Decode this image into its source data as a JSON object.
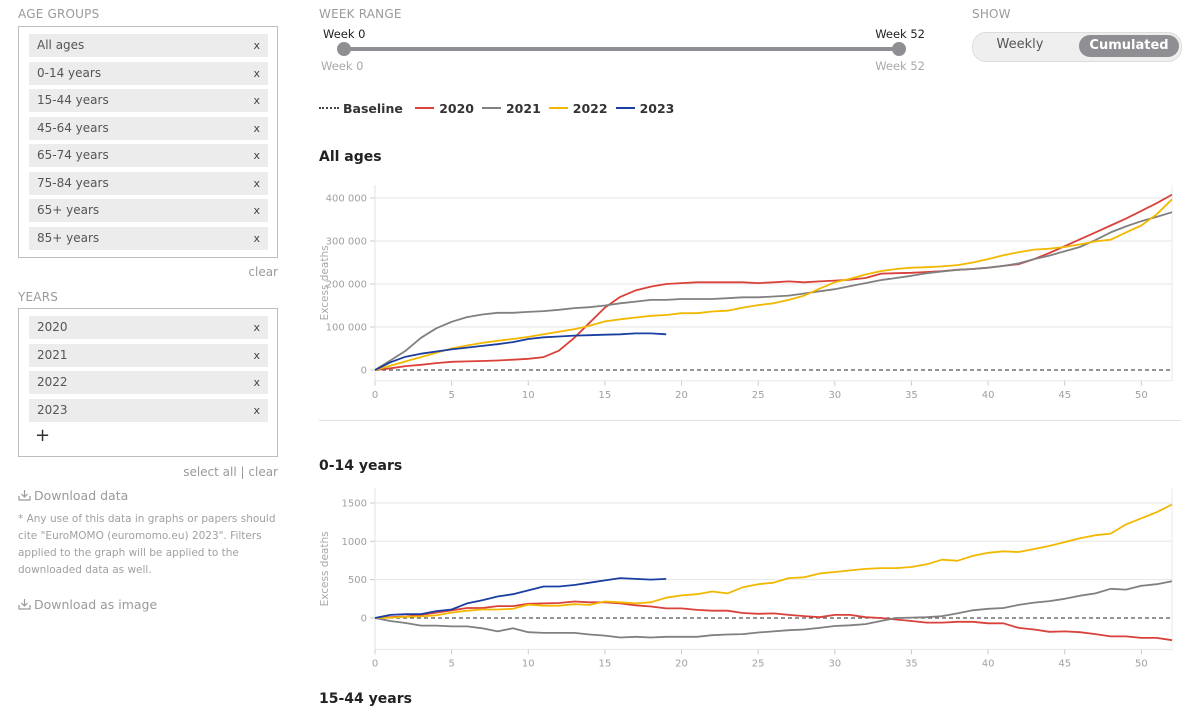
{
  "sidebar": {
    "age_groups_label": "AGE GROUPS",
    "age_groups": [
      "All ages",
      "0-14 years",
      "15-44 years",
      "45-64 years",
      "65-74 years",
      "75-84 years",
      "65+ years",
      "85+ years"
    ],
    "remove_glyph": "x",
    "age_clear": "clear",
    "years_label": "YEARS",
    "years": [
      "2020",
      "2021",
      "2022",
      "2023"
    ],
    "add_glyph": "+",
    "select_all": "select all",
    "separator": "|",
    "years_clear": "clear",
    "download_data": "Download data",
    "note": "* Any use of this data in graphs or papers should cite \"EuroMOMO (euromomo.eu) 2023\". Filters applied to the graph will be applied to the downloaded data as well.",
    "download_image": "Download as image",
    "download_icon": "download-icon"
  },
  "week_range": {
    "label": "WEEK RANGE",
    "min_top": "Week 0",
    "max_top": "Week 52",
    "min_bottom": "Week 0",
    "max_bottom": "Week 52",
    "value_min": 0,
    "value_max": 52,
    "range_min": 0,
    "range_max": 52
  },
  "show": {
    "label": "SHOW",
    "options": [
      "Weekly",
      "Cumulated"
    ],
    "selected": "Cumulated"
  },
  "legend": {
    "baseline": "Baseline",
    "items": [
      {
        "label": "2020",
        "color": "#d9413a"
      },
      {
        "label": "2021",
        "color": "#808080"
      },
      {
        "label": "2022",
        "color": "#f2b800"
      },
      {
        "label": "2023",
        "color": "#1a3fa0"
      }
    ]
  },
  "chart_data": [
    {
      "type": "line",
      "title": "All ages",
      "xlabel": "",
      "ylabel": "Excess deaths",
      "xlim": [
        0,
        52
      ],
      "ylim": [
        -25000,
        430000
      ],
      "yticks": [
        0,
        100000,
        200000,
        300000,
        400000
      ],
      "ytick_labels": [
        "0",
        "100 000",
        "200 000",
        "300 000",
        "400 000"
      ],
      "xticks": [
        0,
        5,
        10,
        15,
        20,
        25,
        30,
        35,
        40,
        45,
        50
      ],
      "xtick_labels": [
        "0",
        "5",
        "10",
        "15",
        "20",
        "25",
        "30",
        "35",
        "40",
        "45",
        "50"
      ],
      "grid": true,
      "baseline": 0,
      "series": [
        {
          "name": "2020",
          "color": "#d9413a",
          "x": [
            0,
            1,
            2,
            3,
            4,
            5,
            6,
            7,
            8,
            9,
            10,
            11,
            12,
            13,
            14,
            15,
            16,
            17,
            18,
            19,
            20,
            21,
            22,
            23,
            24,
            25,
            26,
            27,
            28,
            29,
            30,
            31,
            32,
            33,
            34,
            35,
            36,
            37,
            38,
            39,
            40,
            41,
            42,
            43,
            44,
            45,
            46,
            47,
            48,
            49,
            50,
            51,
            52
          ],
          "y": [
            0,
            4000,
            9000,
            12000,
            16000,
            19000,
            20000,
            21000,
            22000,
            24000,
            26000,
            30000,
            45000,
            75000,
            110000,
            145000,
            170000,
            185000,
            194000,
            200000,
            202000,
            204000,
            204000,
            204000,
            204000,
            202000,
            204000,
            206000,
            204000,
            206000,
            208000,
            210000,
            214000,
            224000,
            225000,
            226000,
            228000,
            230000,
            233000,
            235000,
            238000,
            242000,
            246000,
            258000,
            272000,
            288000,
            304000,
            320000,
            336000,
            352000,
            370000,
            388000,
            408000
          ]
        },
        {
          "name": "2021",
          "color": "#808080",
          "x": [
            0,
            1,
            2,
            3,
            4,
            5,
            6,
            7,
            8,
            9,
            10,
            11,
            12,
            13,
            14,
            15,
            16,
            17,
            18,
            19,
            20,
            21,
            22,
            23,
            24,
            25,
            26,
            27,
            28,
            29,
            30,
            31,
            32,
            33,
            34,
            35,
            36,
            37,
            38,
            39,
            40,
            41,
            42,
            43,
            44,
            45,
            46,
            47,
            48,
            49,
            50,
            51,
            52
          ],
          "y": [
            0,
            22000,
            45000,
            75000,
            97000,
            112000,
            123000,
            129000,
            133000,
            133000,
            135000,
            137000,
            140000,
            144000,
            146000,
            150000,
            155000,
            159000,
            163000,
            163000,
            165000,
            165000,
            165000,
            167000,
            169000,
            169000,
            171000,
            173000,
            178000,
            183000,
            188000,
            195000,
            202000,
            209000,
            214000,
            219000,
            225000,
            229000,
            233000,
            235000,
            238000,
            242000,
            248000,
            258000,
            266000,
            276000,
            286000,
            302000,
            320000,
            334000,
            346000,
            356000,
            367000
          ]
        },
        {
          "name": "2022",
          "color": "#f2b800",
          "x": [
            0,
            1,
            2,
            3,
            4,
            5,
            6,
            7,
            8,
            9,
            10,
            11,
            12,
            13,
            14,
            15,
            16,
            17,
            18,
            19,
            20,
            21,
            22,
            23,
            24,
            25,
            26,
            27,
            28,
            29,
            30,
            31,
            32,
            33,
            34,
            35,
            36,
            37,
            38,
            39,
            40,
            41,
            42,
            43,
            44,
            45,
            46,
            47,
            48,
            49,
            50,
            51,
            52
          ],
          "y": [
            0,
            10000,
            20000,
            30000,
            40000,
            50000,
            57000,
            63000,
            68000,
            72000,
            77000,
            83000,
            89000,
            95000,
            103000,
            113000,
            118000,
            122000,
            126000,
            128000,
            132000,
            132000,
            136000,
            138000,
            145000,
            151000,
            155000,
            163000,
            173000,
            189000,
            204000,
            212000,
            222000,
            230000,
            235000,
            238000,
            239000,
            241000,
            244000,
            250000,
            258000,
            267000,
            274000,
            280000,
            282000,
            286000,
            292000,
            299000,
            303000,
            320000,
            336000,
            362000,
            397000
          ]
        },
        {
          "name": "2023",
          "color": "#1a3fa0",
          "x": [
            0,
            1,
            2,
            3,
            4,
            5,
            6,
            7,
            8,
            9,
            10,
            11,
            12,
            13,
            14,
            15,
            16,
            17,
            18,
            19
          ],
          "y": [
            0,
            18000,
            31000,
            38000,
            43000,
            48000,
            52000,
            56000,
            60000,
            65000,
            72000,
            76000,
            78000,
            80000,
            81000,
            82000,
            83000,
            85000,
            85000,
            83000
          ]
        }
      ]
    },
    {
      "type": "line",
      "title": "0-14 years",
      "xlabel": "",
      "ylabel": "Excess deaths",
      "xlim": [
        0,
        52
      ],
      "ylim": [
        -410,
        1690
      ],
      "yticks": [
        0,
        500,
        1000,
        1500
      ],
      "ytick_labels": [
        "0",
        "500",
        "1000",
        "1500"
      ],
      "xticks": [
        0,
        5,
        10,
        15,
        20,
        25,
        30,
        35,
        40,
        45,
        50
      ],
      "xtick_labels": [
        "0",
        "5",
        "10",
        "15",
        "20",
        "25",
        "30",
        "35",
        "40",
        "45",
        "50"
      ],
      "grid": true,
      "baseline": 0,
      "series": [
        {
          "name": "2020",
          "color": "#d9413a",
          "x": [
            0,
            1,
            2,
            3,
            4,
            5,
            6,
            7,
            8,
            9,
            10,
            11,
            12,
            13,
            14,
            15,
            16,
            17,
            18,
            19,
            20,
            21,
            22,
            23,
            24,
            25,
            26,
            27,
            28,
            29,
            30,
            31,
            32,
            33,
            34,
            35,
            36,
            37,
            38,
            39,
            40,
            41,
            42,
            43,
            44,
            45,
            46,
            47,
            48,
            49,
            50,
            51,
            52
          ],
          "y": [
            0,
            10,
            20,
            40,
            70,
            100,
            130,
            130,
            155,
            155,
            185,
            190,
            195,
            215,
            205,
            205,
            190,
            165,
            150,
            125,
            125,
            105,
            95,
            95,
            65,
            55,
            60,
            40,
            25,
            10,
            40,
            40,
            10,
            0,
            -20,
            -40,
            -60,
            -60,
            -50,
            -50,
            -70,
            -70,
            -130,
            -150,
            -180,
            -175,
            -185,
            -210,
            -240,
            -240,
            -260,
            -260,
            -290
          ]
        },
        {
          "name": "2021",
          "color": "#808080",
          "x": [
            0,
            1,
            2,
            3,
            4,
            5,
            6,
            7,
            8,
            9,
            10,
            11,
            12,
            13,
            14,
            15,
            16,
            17,
            18,
            19,
            20,
            21,
            22,
            23,
            24,
            25,
            26,
            27,
            28,
            29,
            30,
            31,
            32,
            33,
            34,
            35,
            36,
            37,
            38,
            39,
            40,
            41,
            42,
            43,
            44,
            45,
            46,
            47,
            48,
            49,
            50,
            51,
            52
          ],
          "y": [
            0,
            -40,
            -65,
            -100,
            -100,
            -110,
            -110,
            -135,
            -175,
            -135,
            -185,
            -195,
            -195,
            -195,
            -215,
            -230,
            -255,
            -245,
            -255,
            -245,
            -245,
            -245,
            -225,
            -215,
            -210,
            -190,
            -175,
            -160,
            -150,
            -130,
            -105,
            -95,
            -80,
            -40,
            0,
            5,
            10,
            25,
            60,
            100,
            120,
            130,
            170,
            200,
            220,
            250,
            290,
            320,
            380,
            370,
            420,
            440,
            480
          ]
        },
        {
          "name": "2022",
          "color": "#f2b800",
          "x": [
            0,
            1,
            2,
            3,
            4,
            5,
            6,
            7,
            8,
            9,
            10,
            11,
            12,
            13,
            14,
            15,
            16,
            17,
            18,
            19,
            20,
            21,
            22,
            23,
            24,
            25,
            26,
            27,
            28,
            29,
            30,
            31,
            32,
            33,
            34,
            35,
            36,
            37,
            38,
            39,
            40,
            41,
            42,
            43,
            44,
            45,
            46,
            47,
            48,
            49,
            50,
            51,
            52
          ],
          "y": [
            0,
            5,
            15,
            20,
            35,
            70,
            95,
            110,
            110,
            120,
            175,
            160,
            160,
            180,
            170,
            215,
            205,
            190,
            205,
            265,
            295,
            310,
            345,
            320,
            400,
            440,
            460,
            520,
            530,
            580,
            600,
            620,
            640,
            650,
            650,
            665,
            700,
            760,
            745,
            810,
            850,
            870,
            860,
            900,
            940,
            990,
            1040,
            1080,
            1100,
            1220,
            1300,
            1380,
            1480
          ]
        },
        {
          "name": "2023",
          "color": "#1a3fa0",
          "x": [
            0,
            1,
            2,
            3,
            4,
            5,
            6,
            7,
            8,
            9,
            10,
            11,
            12,
            13,
            14,
            15,
            16,
            17,
            18,
            19
          ],
          "y": [
            0,
            40,
            50,
            50,
            90,
            110,
            190,
            230,
            280,
            310,
            360,
            410,
            410,
            430,
            460,
            490,
            520,
            510,
            500,
            510
          ]
        }
      ]
    }
  ],
  "next_section_title": "15-44 years"
}
